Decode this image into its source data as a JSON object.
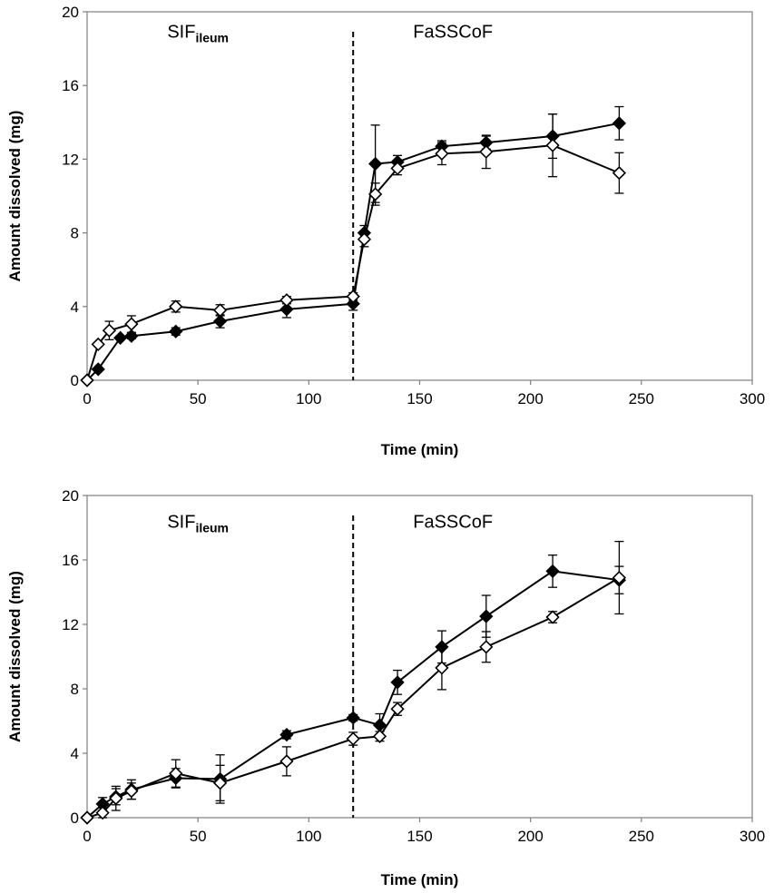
{
  "chart_data": [
    {
      "type": "line",
      "title": "",
      "xlabel": "Time (min)",
      "ylabel": "Amount dissolved (mg)",
      "xlim": [
        0,
        300
      ],
      "ylim": [
        0,
        20
      ],
      "xticks": [
        "0",
        "50",
        "100",
        "150",
        "200",
        "250",
        "300"
      ],
      "yticks": [
        "0",
        "4",
        "8",
        "12",
        "16",
        "20"
      ],
      "grid": false,
      "divider_x": 120,
      "annotations": [
        {
          "text": "SIF",
          "sub": "ileum",
          "x": 50,
          "y": 18.6
        },
        {
          "text": "FaSSCoF",
          "x": 165,
          "y": 18.6
        }
      ],
      "series": [
        {
          "marker": "filled-diamond",
          "color": "#000000",
          "x": [
            0,
            5,
            15,
            20,
            40,
            60,
            90,
            120,
            125,
            130,
            140,
            160,
            180,
            210,
            240
          ],
          "y": [
            0,
            0.6,
            2.3,
            2.4,
            2.65,
            3.2,
            3.85,
            4.15,
            8.0,
            11.75,
            11.85,
            12.7,
            12.9,
            13.25,
            13.95
          ],
          "err": [
            0,
            0.05,
            0.1,
            0.15,
            0.2,
            0.35,
            0.45,
            0.35,
            0.4,
            2.1,
            0.35,
            0.3,
            0.35,
            1.2,
            0.9
          ]
        },
        {
          "marker": "open-diamond",
          "color": "#000000",
          "x": [
            0,
            5,
            10,
            20,
            40,
            60,
            90,
            120,
            125,
            130,
            140,
            160,
            180,
            210,
            240
          ],
          "y": [
            0,
            1.95,
            2.7,
            3.05,
            4.0,
            3.8,
            4.35,
            4.55,
            7.65,
            10.1,
            11.5,
            12.3,
            12.4,
            12.75,
            11.25
          ],
          "err": [
            0,
            0.1,
            0.5,
            0.45,
            0.3,
            0.3,
            0.2,
            0.2,
            0.4,
            0.6,
            0.35,
            0.6,
            0.9,
            1.7,
            1.1
          ]
        }
      ]
    },
    {
      "type": "line",
      "title": "",
      "xlabel": "Time (min)",
      "ylabel": "Amount dissolved (mg)",
      "xlim": [
        0,
        300
      ],
      "ylim": [
        0,
        20
      ],
      "xticks": [
        "0",
        "50",
        "100",
        "150",
        "200",
        "250",
        "300"
      ],
      "yticks": [
        "0",
        "4",
        "8",
        "12",
        "16",
        "20"
      ],
      "grid": false,
      "divider_x": 120,
      "annotations": [
        {
          "text": "SIF",
          "sub": "ileum",
          "x": 50,
          "y": 18.0
        },
        {
          "text": "FaSSCoF",
          "x": 165,
          "y": 18.0
        }
      ],
      "series": [
        {
          "marker": "filled-diamond",
          "color": "#000000",
          "x": [
            0,
            7,
            13,
            20,
            40,
            60,
            90,
            120,
            132,
            140,
            160,
            180,
            210,
            240
          ],
          "y": [
            0,
            0.85,
            1.3,
            1.75,
            2.45,
            2.4,
            5.15,
            6.2,
            5.75,
            8.4,
            10.6,
            12.5,
            15.3,
            14.75
          ],
          "err": [
            0,
            0.4,
            0.5,
            0.6,
            0.6,
            1.5,
            0.25,
            0.2,
            0.7,
            0.75,
            1.0,
            1.3,
            1.0,
            0.85
          ]
        },
        {
          "marker": "open-diamond",
          "color": "#000000",
          "x": [
            0,
            7,
            13,
            20,
            40,
            60,
            90,
            120,
            132,
            140,
            160,
            180,
            210,
            240
          ],
          "y": [
            0,
            0.3,
            1.2,
            1.65,
            2.75,
            2.15,
            3.5,
            4.9,
            5.05,
            6.75,
            9.3,
            10.6,
            12.45,
            14.9
          ],
          "err": [
            0,
            0.3,
            0.75,
            0.5,
            0.85,
            1.1,
            0.9,
            0.4,
            0.3,
            0.4,
            1.35,
            0.95,
            0.35,
            2.25
          ]
        }
      ]
    }
  ]
}
